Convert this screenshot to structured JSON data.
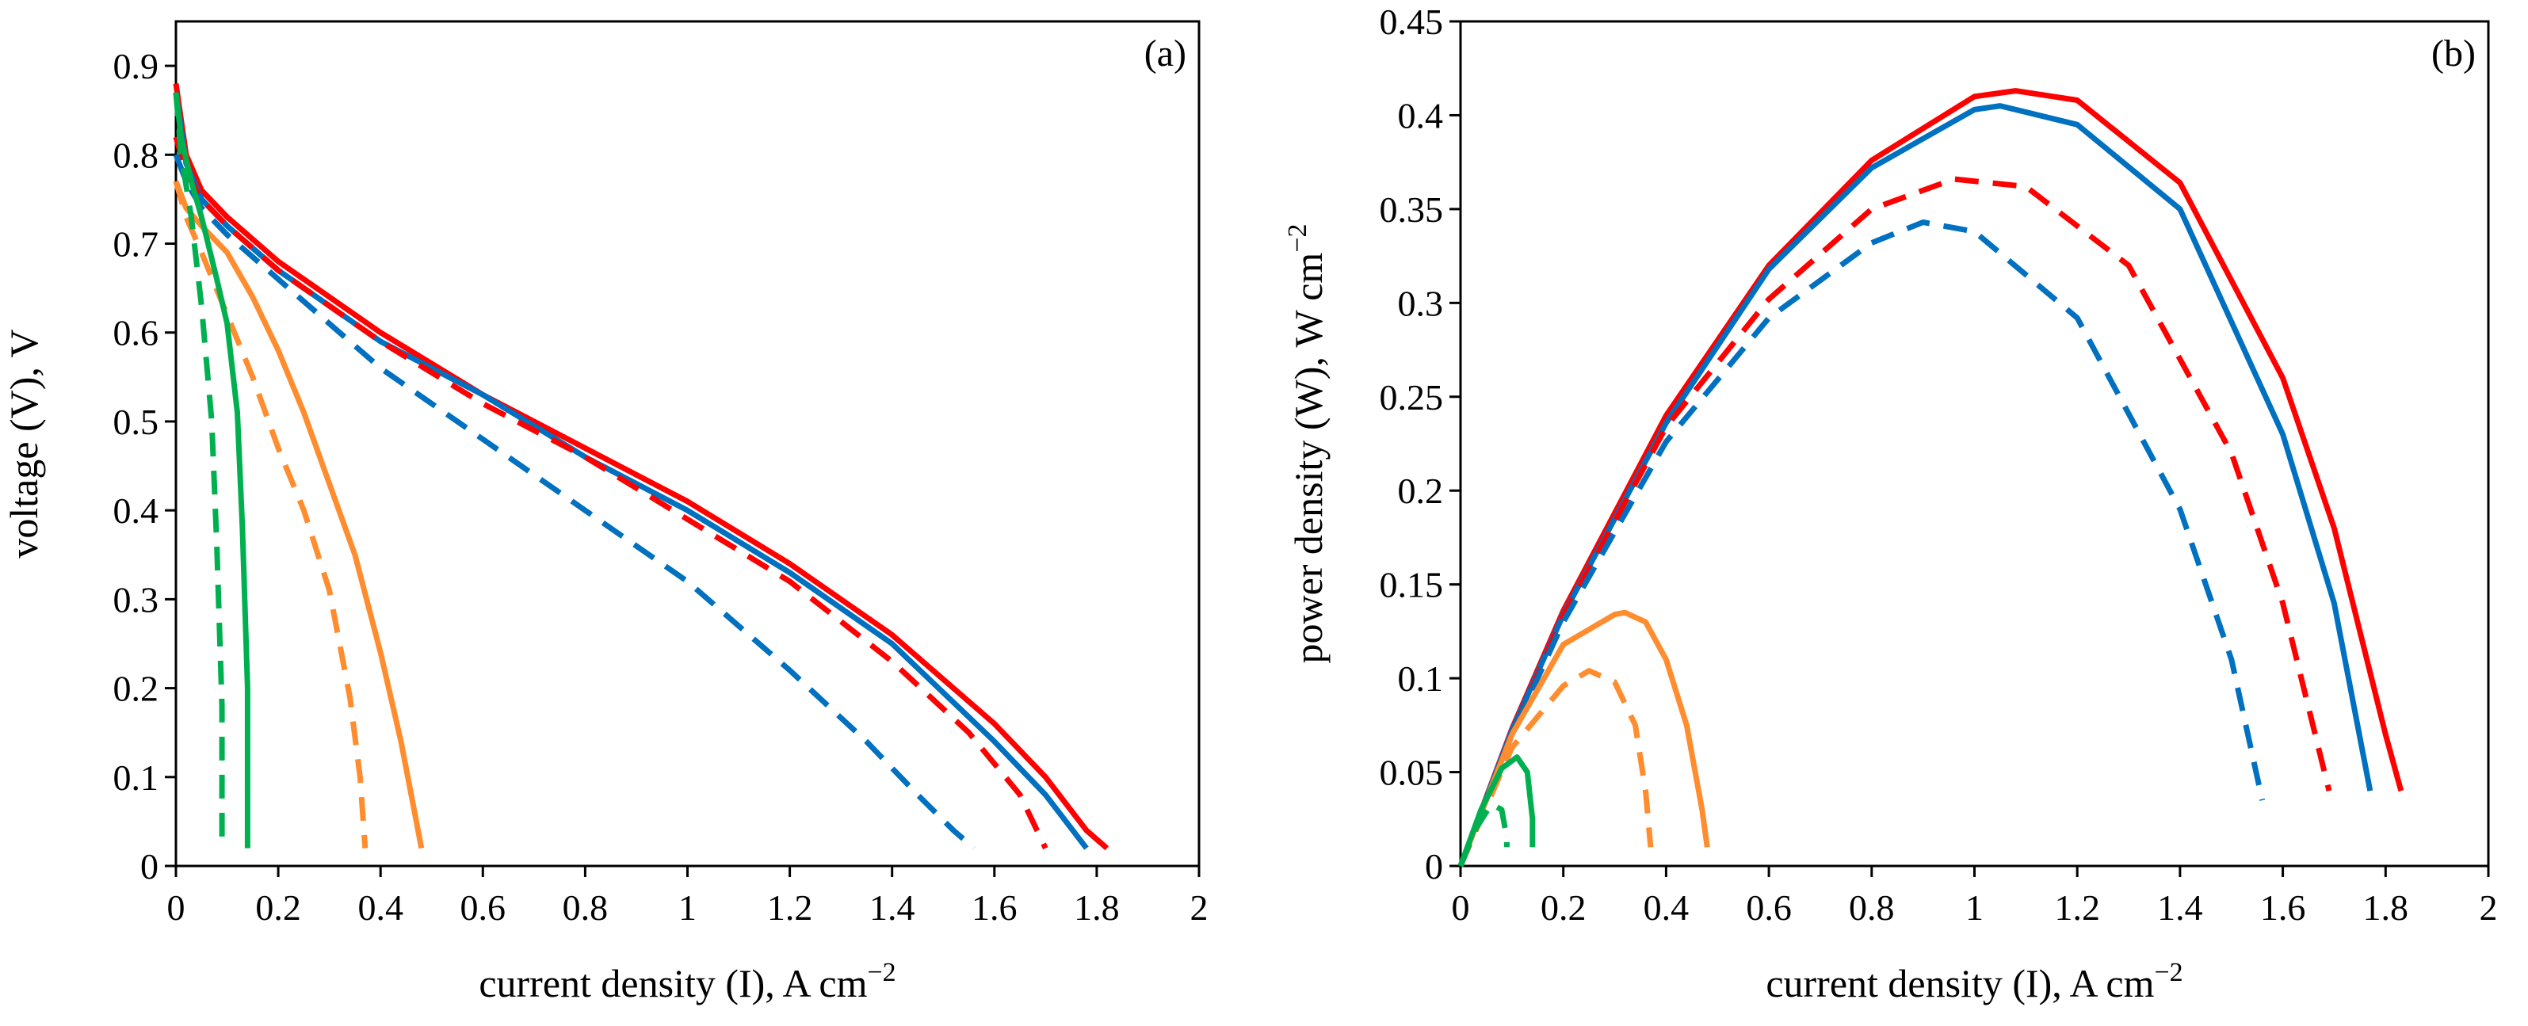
{
  "chart_data": [
    {
      "type": "line",
      "panel_label": "(a)",
      "xlabel": "current density (I), A cm",
      "xlabel_sup": "−2",
      "ylabel": "voltage (V), V",
      "xlim": [
        0,
        2
      ],
      "ylim": [
        0,
        0.95
      ],
      "xticks": [
        "0",
        "0.2",
        "0.4",
        "0.6",
        "0.8",
        "1",
        "1.2",
        "1.4",
        "1.6",
        "1.8",
        "2"
      ],
      "yticks": [
        "0",
        "0.1",
        "0.2",
        "0.3",
        "0.4",
        "0.5",
        "0.6",
        "0.7",
        "0.8",
        "0.9"
      ],
      "grid": false,
      "legend": "none",
      "series": [
        {
          "color": "#FF0000",
          "style": "solid",
          "x": [
            0.0,
            0.02,
            0.05,
            0.1,
            0.2,
            0.4,
            0.6,
            0.8,
            1.0,
            1.2,
            1.4,
            1.6,
            1.7,
            1.78,
            1.82
          ],
          "y": [
            0.88,
            0.8,
            0.76,
            0.73,
            0.68,
            0.6,
            0.53,
            0.47,
            0.41,
            0.34,
            0.26,
            0.16,
            0.1,
            0.04,
            0.02
          ]
        },
        {
          "color": "#0070C0",
          "style": "solid",
          "x": [
            0.0,
            0.02,
            0.05,
            0.1,
            0.2,
            0.4,
            0.6,
            0.8,
            1.0,
            1.2,
            1.4,
            1.6,
            1.7,
            1.78
          ],
          "y": [
            0.87,
            0.79,
            0.75,
            0.72,
            0.67,
            0.59,
            0.53,
            0.46,
            0.4,
            0.33,
            0.25,
            0.14,
            0.08,
            0.02
          ]
        },
        {
          "color": "#FF0000",
          "style": "dashed",
          "x": [
            0.0,
            0.02,
            0.05,
            0.1,
            0.2,
            0.4,
            0.6,
            0.8,
            1.0,
            1.2,
            1.4,
            1.55,
            1.65,
            1.7
          ],
          "y": [
            0.82,
            0.78,
            0.75,
            0.72,
            0.67,
            0.59,
            0.52,
            0.46,
            0.39,
            0.32,
            0.23,
            0.15,
            0.08,
            0.02
          ]
        },
        {
          "color": "#0070C0",
          "style": "dashed",
          "x": [
            0.0,
            0.02,
            0.05,
            0.1,
            0.2,
            0.4,
            0.6,
            0.8,
            1.0,
            1.2,
            1.35,
            1.45,
            1.52,
            1.56
          ],
          "y": [
            0.8,
            0.77,
            0.74,
            0.71,
            0.66,
            0.56,
            0.48,
            0.4,
            0.32,
            0.22,
            0.14,
            0.08,
            0.04,
            0.02
          ]
        },
        {
          "color": "#FF8C2E",
          "style": "solid",
          "x": [
            0.0,
            0.02,
            0.05,
            0.1,
            0.15,
            0.2,
            0.25,
            0.3,
            0.35,
            0.4,
            0.44,
            0.47,
            0.48
          ],
          "y": [
            0.77,
            0.74,
            0.72,
            0.69,
            0.64,
            0.58,
            0.51,
            0.43,
            0.35,
            0.24,
            0.14,
            0.05,
            0.02
          ]
        },
        {
          "color": "#FF8C2E",
          "style": "dashed",
          "x": [
            0.0,
            0.02,
            0.05,
            0.1,
            0.15,
            0.2,
            0.25,
            0.3,
            0.34,
            0.36,
            0.37
          ],
          "y": [
            0.77,
            0.73,
            0.69,
            0.62,
            0.55,
            0.47,
            0.4,
            0.31,
            0.19,
            0.1,
            0.02
          ]
        },
        {
          "color": "#00B050",
          "style": "solid",
          "x": [
            0.0,
            0.01,
            0.03,
            0.05,
            0.08,
            0.1,
            0.12,
            0.13,
            0.14,
            0.14
          ],
          "y": [
            0.87,
            0.82,
            0.77,
            0.73,
            0.66,
            0.61,
            0.51,
            0.38,
            0.2,
            0.02
          ]
        },
        {
          "color": "#00B050",
          "style": "dashed",
          "x": [
            0.0,
            0.01,
            0.03,
            0.05,
            0.07,
            0.08,
            0.09,
            0.09
          ],
          "y": [
            0.87,
            0.8,
            0.73,
            0.63,
            0.5,
            0.36,
            0.18,
            0.02
          ]
        }
      ]
    },
    {
      "type": "line",
      "panel_label": "(b)",
      "xlabel": "current density (I), A cm",
      "xlabel_sup": "−2",
      "ylabel": "power density (W), W cm",
      "ylabel_sup": "−2",
      "xlim": [
        0,
        2
      ],
      "ylim": [
        0,
        0.45
      ],
      "xticks": [
        "0",
        "0.2",
        "0.4",
        "0.6",
        "0.8",
        "1",
        "1.2",
        "1.4",
        "1.6",
        "1.8",
        "2"
      ],
      "yticks": [
        "0",
        "0.05",
        "0.1",
        "0.15",
        "0.2",
        "0.25",
        "0.3",
        "0.35",
        "0.4",
        "0.45"
      ],
      "grid": false,
      "legend": "none",
      "series": [
        {
          "color": "#FF0000",
          "style": "solid",
          "x": [
            0.0,
            0.1,
            0.2,
            0.4,
            0.6,
            0.8,
            1.0,
            1.08,
            1.2,
            1.4,
            1.6,
            1.7,
            1.8,
            1.83
          ],
          "y": [
            0.0,
            0.073,
            0.136,
            0.24,
            0.32,
            0.376,
            0.41,
            0.413,
            0.408,
            0.364,
            0.26,
            0.18,
            0.07,
            0.04
          ]
        },
        {
          "color": "#0070C0",
          "style": "solid",
          "x": [
            0.0,
            0.1,
            0.2,
            0.4,
            0.6,
            0.8,
            1.0,
            1.05,
            1.2,
            1.4,
            1.6,
            1.7,
            1.77
          ],
          "y": [
            0.0,
            0.072,
            0.134,
            0.236,
            0.318,
            0.372,
            0.403,
            0.405,
            0.395,
            0.35,
            0.23,
            0.14,
            0.04
          ]
        },
        {
          "color": "#FF0000",
          "style": "dashed",
          "x": [
            0.0,
            0.1,
            0.2,
            0.4,
            0.6,
            0.8,
            0.96,
            1.1,
            1.3,
            1.5,
            1.6,
            1.69
          ],
          "y": [
            0.0,
            0.07,
            0.133,
            0.234,
            0.302,
            0.35,
            0.366,
            0.362,
            0.32,
            0.22,
            0.14,
            0.04
          ]
        },
        {
          "color": "#0070C0",
          "style": "dashed",
          "x": [
            0.0,
            0.1,
            0.2,
            0.4,
            0.6,
            0.8,
            0.9,
            1.0,
            1.2,
            1.4,
            1.5,
            1.56
          ],
          "y": [
            0.0,
            0.07,
            0.13,
            0.226,
            0.292,
            0.332,
            0.343,
            0.338,
            0.292,
            0.19,
            0.11,
            0.035
          ]
        },
        {
          "color": "#FF8C2E",
          "style": "solid",
          "x": [
            0.0,
            0.1,
            0.2,
            0.3,
            0.32,
            0.36,
            0.4,
            0.44,
            0.47,
            0.48
          ],
          "y": [
            0.0,
            0.07,
            0.118,
            0.134,
            0.135,
            0.13,
            0.11,
            0.075,
            0.03,
            0.01
          ]
        },
        {
          "color": "#FF8C2E",
          "style": "dashed",
          "x": [
            0.0,
            0.1,
            0.2,
            0.25,
            0.3,
            0.34,
            0.36,
            0.37
          ],
          "y": [
            0.0,
            0.063,
            0.096,
            0.104,
            0.098,
            0.075,
            0.04,
            0.01
          ]
        },
        {
          "color": "#00B050",
          "style": "solid",
          "x": [
            0.0,
            0.04,
            0.08,
            0.11,
            0.13,
            0.14,
            0.14
          ],
          "y": [
            0.0,
            0.03,
            0.052,
            0.058,
            0.05,
            0.025,
            0.01
          ]
        },
        {
          "color": "#00B050",
          "style": "dashed",
          "x": [
            0.0,
            0.03,
            0.06,
            0.08,
            0.09,
            0.09
          ],
          "y": [
            0.0,
            0.02,
            0.033,
            0.03,
            0.015,
            0.01
          ]
        }
      ]
    }
  ]
}
